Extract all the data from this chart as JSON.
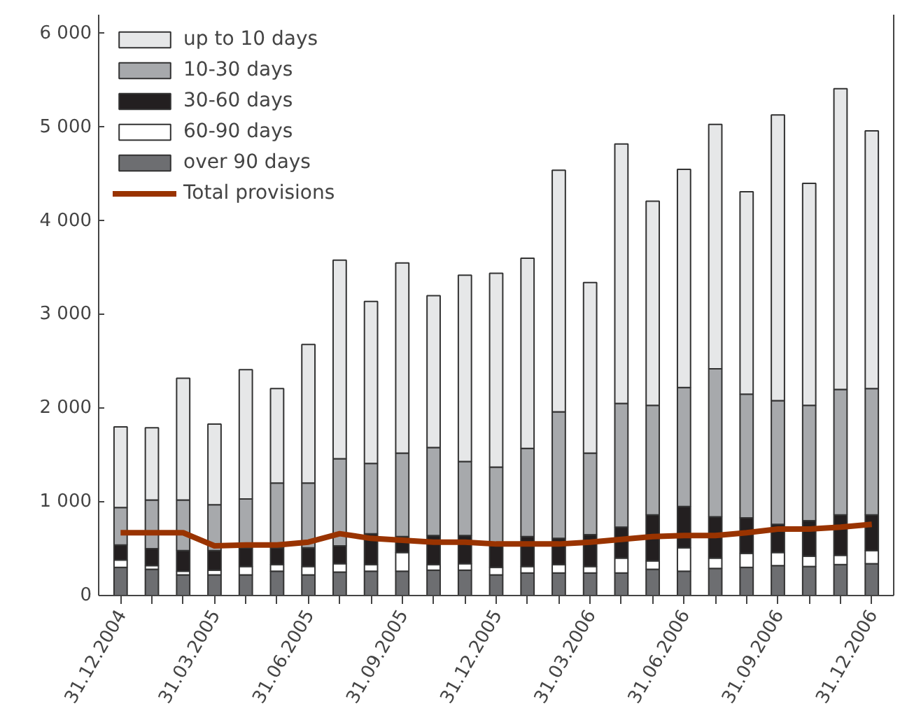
{
  "chart_data": {
    "type": "bar",
    "stacked": true,
    "categories": [
      "31.12.2004",
      null,
      null,
      "31.03.2005",
      null,
      null,
      "31.06.2005",
      null,
      null,
      "31.09.2005",
      null,
      null,
      "31.12.2005",
      null,
      null,
      "31.03.2006",
      null,
      null,
      "31.06.2006",
      null,
      null,
      "31.09.2006",
      null,
      null,
      "31.12.2006"
    ],
    "series": [
      {
        "name": "over 90 days",
        "color": "#6d6e71",
        "values": [
          300,
          280,
          220,
          220,
          220,
          260,
          220,
          250,
          260,
          260,
          270,
          270,
          220,
          240,
          240,
          240,
          240,
          280,
          260,
          290,
          300,
          320,
          310,
          330,
          340
        ]
      },
      {
        "name": "60-90 days",
        "color": "#ffffff",
        "values": [
          80,
          40,
          40,
          50,
          90,
          70,
          90,
          90,
          70,
          200,
          60,
          70,
          80,
          70,
          90,
          70,
          160,
          90,
          250,
          110,
          150,
          140,
          110,
          100,
          140
        ]
      },
      {
        "name": "30-60 days",
        "color": "#231f20",
        "values": [
          160,
          180,
          220,
          210,
          200,
          180,
          200,
          190,
          330,
          170,
          310,
          300,
          260,
          320,
          280,
          340,
          330,
          490,
          440,
          440,
          380,
          300,
          380,
          430,
          380
        ]
      },
      {
        "name": "10-30 days",
        "color": "#a7a9ac",
        "values": [
          400,
          520,
          540,
          490,
          520,
          690,
          690,
          930,
          750,
          890,
          940,
          790,
          810,
          940,
          1350,
          870,
          1320,
          1170,
          1270,
          1580,
          1320,
          1320,
          1230,
          1340,
          1350
        ]
      },
      {
        "name": "up to 10 days",
        "color": "#e6e7e8",
        "values": [
          860,
          770,
          1300,
          860,
          1380,
          1010,
          1480,
          2120,
          1730,
          2030,
          1620,
          1990,
          2070,
          2030,
          2580,
          1820,
          2770,
          2180,
          2330,
          2610,
          2160,
          3050,
          2370,
          3210,
          2750
        ]
      },
      {
        "name": "Total provisions",
        "type": "line",
        "color": "#993300",
        "values": [
          670,
          670,
          670,
          530,
          540,
          540,
          570,
          660,
          610,
          590,
          570,
          570,
          550,
          550,
          550,
          570,
          600,
          630,
          640,
          640,
          670,
          710,
          710,
          730,
          760
        ]
      }
    ],
    "ylim": [
      0,
      6200
    ],
    "yticks": [
      0,
      {
        "value": 1000,
        "label": "1 000"
      },
      {
        "value": 2000,
        "label": "2 000"
      },
      {
        "value": 3000,
        "label": "3 000"
      },
      {
        "value": 4000,
        "label": "4 000"
      },
      {
        "value": 5000,
        "label": "5 000"
      },
      {
        "value": 6000,
        "label": "6 000"
      }
    ],
    "grid": false,
    "legend": "top left",
    "marker": "none",
    "line_style": "solid"
  }
}
